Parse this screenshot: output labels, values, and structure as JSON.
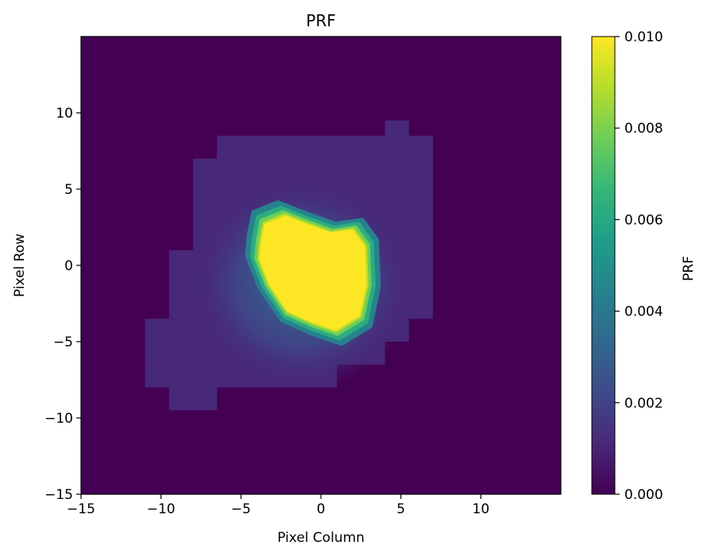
{
  "chart_data": {
    "type": "heatmap",
    "title": "PRF",
    "xlabel": "Pixel Column",
    "ylabel": "Pixel Row",
    "xlim": [
      -15,
      15
    ],
    "ylim": [
      -15,
      15
    ],
    "xticks": [
      -15,
      -10,
      -5,
      0,
      5,
      10
    ],
    "yticks": [
      -15,
      -10,
      -5,
      0,
      5,
      10
    ],
    "xtick_labels": [
      "−15",
      "−10",
      "−5",
      "0",
      "5",
      "10"
    ],
    "ytick_labels": [
      "−15",
      "−10",
      "−5",
      "0",
      "5",
      "10"
    ],
    "colorbar": {
      "label": "PRF",
      "colormap": "viridis",
      "range": [
        0.0,
        0.01
      ],
      "ticks": [
        0.0,
        0.002,
        0.004,
        0.006,
        0.008,
        0.01
      ],
      "tick_labels": [
        "0.000",
        "0.002",
        "0.004",
        "0.006",
        "0.008",
        "0.010"
      ]
    },
    "grid": false,
    "background_value": 0.0,
    "support_rows": [
      {
        "y": [
          7.5,
          9.5
        ],
        "x": [
          4,
          5.5
        ]
      },
      {
        "y": [
          4.5,
          8.5
        ],
        "x": [
          -6.5,
          7
        ]
      },
      {
        "y": [
          1,
          7
        ],
        "x": [
          -8,
          7
        ]
      },
      {
        "y": [
          -3.5,
          1
        ],
        "x": [
          -9.5,
          7
        ]
      },
      {
        "y": [
          -5,
          -3.5
        ],
        "x": [
          -11,
          5.5
        ]
      },
      {
        "y": [
          -6.5,
          -5
        ],
        "x": [
          -11,
          4
        ]
      },
      {
        "y": [
          -8,
          -6.5
        ],
        "x": [
          -11,
          1
        ]
      },
      {
        "y": [
          -9.5,
          -8
        ],
        "x": [
          -9.5,
          -6.5
        ]
      }
    ],
    "core": {
      "peak_value": 0.01,
      "center": [
        -0.5,
        -0.5
      ],
      "extent_x": [
        -3.8,
        2.8
      ],
      "extent_y": [
        -4.2,
        3.2
      ]
    }
  },
  "colors": {
    "cmap_stops": [
      "#440154",
      "#482878",
      "#3e4a89",
      "#31688e",
      "#26828e",
      "#1f9e89",
      "#35b779",
      "#6ece58",
      "#b5de2b",
      "#fde725"
    ]
  }
}
